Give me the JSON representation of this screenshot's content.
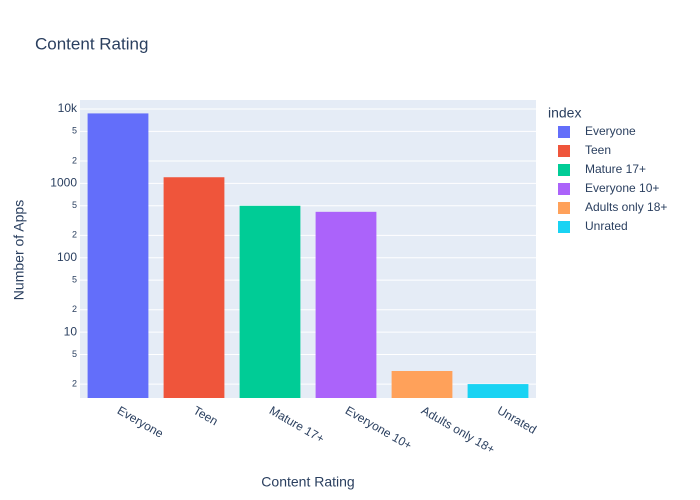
{
  "chart_data": {
    "type": "bar",
    "title": "Content Rating",
    "x_label": "Content Rating",
    "y_label": "Number of Apps",
    "legend_title": "index",
    "categories": [
      "Everyone",
      "Teen",
      "Mature 17+",
      "Everyone 10+",
      "Adults only 18+",
      "Unrated"
    ],
    "values": [
      8714,
      1208,
      499,
      414,
      3,
      2
    ],
    "colors": [
      "#636efa",
      "#EF553B",
      "#00cc96",
      "#ab63fa",
      "#FFA15A",
      "#19d3f3"
    ],
    "log_y": true,
    "grid": true,
    "ylim": [
      1.3,
      13200
    ],
    "yticks": [
      {
        "value": 10000,
        "label": "10k"
      },
      {
        "value": 5000,
        "label": "5"
      },
      {
        "value": 2000,
        "label": "2"
      },
      1000,
      {
        "value": 500,
        "label": "5"
      },
      {
        "value": 200,
        "label": "2"
      },
      100,
      {
        "value": 50,
        "label": "5"
      },
      {
        "value": 20,
        "label": "2"
      },
      10,
      5,
      2
    ]
  }
}
